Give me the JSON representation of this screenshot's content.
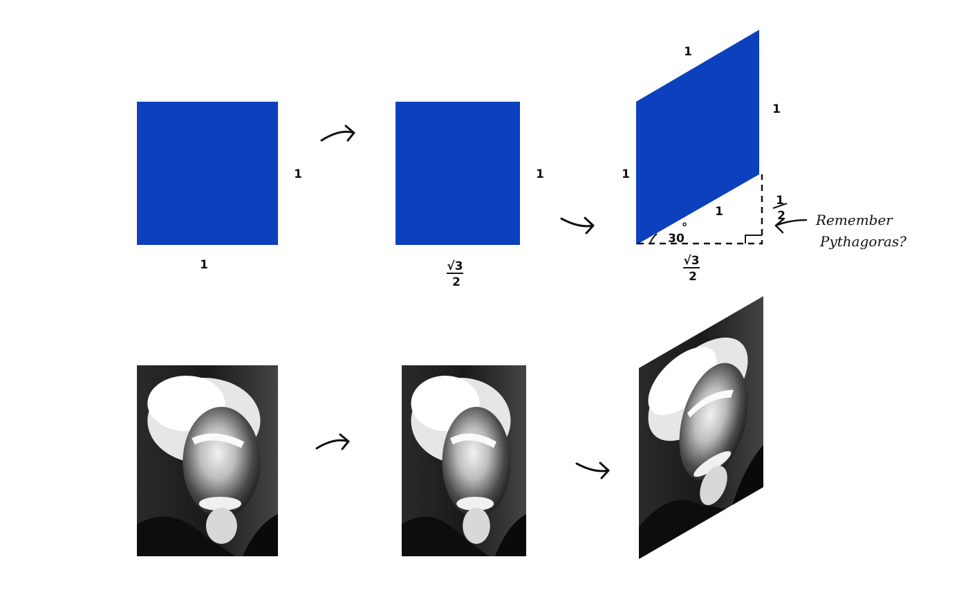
{
  "colors": {
    "shape": "#0c40bd",
    "ink": "#111111",
    "background": "#ffffff"
  },
  "labels": {
    "one": "1",
    "half_num": "1",
    "half_den": "2",
    "sqrt3_num": "√3",
    "sqrt3_den": "2",
    "angle": "30",
    "degree": "°",
    "note_line1": "Remember",
    "note_line2": "Pythagoras?"
  },
  "photo": {
    "subject": "black-and-white portrait of an elderly man with white hair and a beard"
  }
}
